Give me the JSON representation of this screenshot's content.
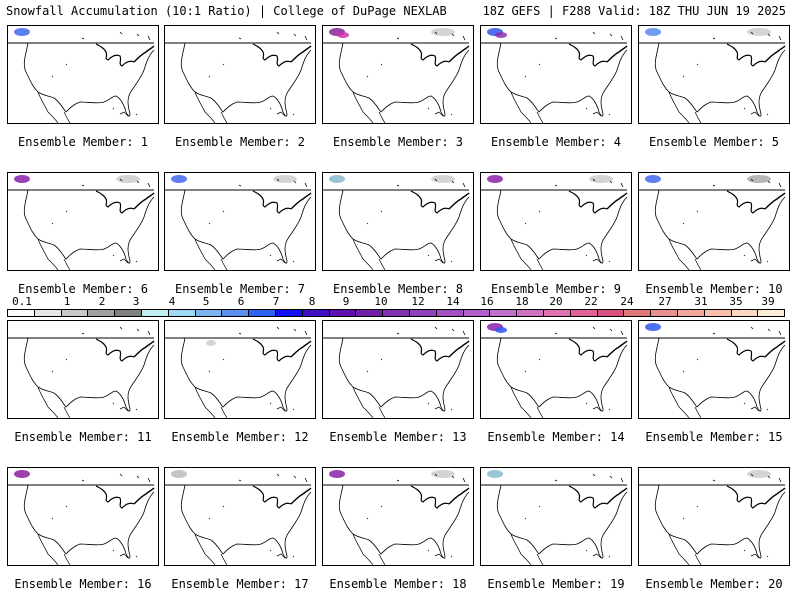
{
  "header": {
    "left": "Snowfall Accumulation (10:1 Ratio) | College of DuPage NEXLAB",
    "right": "18Z GEFS | F288 Valid: 18Z THU JUN 19 2025"
  },
  "panels": [
    {
      "label": "Ensemble Member: 1",
      "snow": [
        [
          "nw",
          "#4466ee"
        ]
      ]
    },
    {
      "label": "Ensemble Member: 2",
      "snow": []
    },
    {
      "label": "Ensemble Member: 3",
      "snow": [
        [
          "nw",
          "#882299"
        ],
        [
          "nw2",
          "#cc33aa"
        ],
        [
          "ne",
          "#cccccc"
        ]
      ]
    },
    {
      "label": "Ensemble Member: 4",
      "snow": [
        [
          "nw",
          "#3355ee"
        ],
        [
          "nw2",
          "#8833aa"
        ]
      ]
    },
    {
      "label": "Ensemble Member: 5",
      "snow": [
        [
          "nw",
          "#5588ee"
        ],
        [
          "ne",
          "#cccccc"
        ]
      ]
    },
    {
      "label": "Ensemble Member: 6",
      "snow": [
        [
          "nw",
          "#8822aa"
        ],
        [
          "ne",
          "#cccccc"
        ]
      ]
    },
    {
      "label": "Ensemble Member: 7",
      "snow": [
        [
          "nw",
          "#4466ee"
        ],
        [
          "ne",
          "#cccccc"
        ]
      ]
    },
    {
      "label": "Ensemble Member: 8",
      "snow": [
        [
          "nw",
          "#88bbcc"
        ],
        [
          "ne",
          "#cccccc"
        ]
      ]
    },
    {
      "label": "Ensemble Member: 9",
      "snow": [
        [
          "nw",
          "#8822aa"
        ],
        [
          "ne",
          "#cccccc"
        ]
      ]
    },
    {
      "label": "Ensemble Member: 10",
      "snow": [
        [
          "nw",
          "#4466ee"
        ],
        [
          "ne",
          "#aaaaaa"
        ]
      ]
    },
    {
      "label": "Ensemble Member: 11",
      "snow": []
    },
    {
      "label": "Ensemble Member: 12",
      "snow": [
        [
          "mid",
          "#cccccc"
        ]
      ]
    },
    {
      "label": "Ensemble Member: 13",
      "snow": []
    },
    {
      "label": "Ensemble Member: 14",
      "snow": [
        [
          "nw",
          "#8822aa"
        ],
        [
          "nw2",
          "#3355ee"
        ]
      ]
    },
    {
      "label": "Ensemble Member: 15",
      "snow": [
        [
          "nw",
          "#3355ee"
        ]
      ]
    },
    {
      "label": "Ensemble Member: 16",
      "snow": [
        [
          "nw",
          "#882299"
        ]
      ]
    },
    {
      "label": "Ensemble Member: 17",
      "snow": [
        [
          "nw",
          "#bbbbbb"
        ]
      ]
    },
    {
      "label": "Ensemble Member: 18",
      "snow": [
        [
          "nw",
          "#8822aa"
        ],
        [
          "ne",
          "#cccccc"
        ]
      ]
    },
    {
      "label": "Ensemble Member: 19",
      "snow": [
        [
          "nw",
          "#88bbcc"
        ]
      ]
    },
    {
      "label": "Ensemble Member: 20",
      "snow": [
        [
          "ne",
          "#cccccc"
        ]
      ]
    }
  ],
  "colorbar": {
    "labels": [
      "0.1",
      "1",
      "2",
      "3",
      "4",
      "5",
      "6",
      "7",
      "8",
      "9",
      "10",
      "12",
      "14",
      "16",
      "18",
      "20",
      "22",
      "24",
      "27",
      "31",
      "35",
      "39"
    ],
    "colors": [
      "#ffffff",
      "#e6e6e6",
      "#c8c8c8",
      "#a0a0a0",
      "#808080",
      "#bfeff0",
      "#9fd8f5",
      "#7fb3f0",
      "#5a8ff0",
      "#3060f0",
      "#1010f0",
      "#4010c0",
      "#6010b0",
      "#7020a8",
      "#8030b0",
      "#9040b8",
      "#a050c0",
      "#b060c8",
      "#c070c8",
      "#d070c0",
      "#e070b0",
      "#e06098",
      "#d85080",
      "#e07878",
      "#e89090",
      "#f0a898",
      "#f8c0a8",
      "#fcd8c0",
      "#fdecd8"
    ]
  }
}
